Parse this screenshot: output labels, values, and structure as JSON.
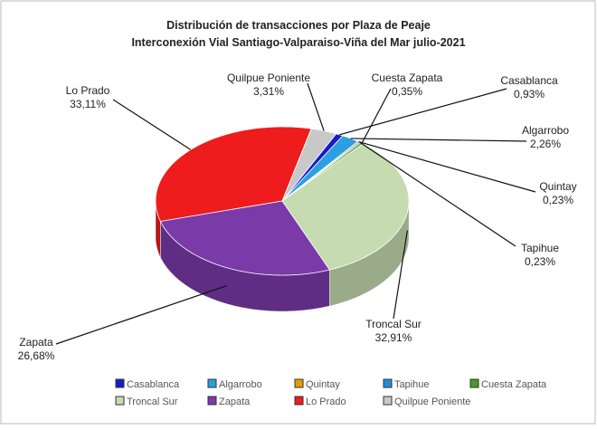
{
  "chart_data": {
    "type": "pie",
    "title": "Distribución de transacciones por Plaza de Peaje",
    "subtitle": "Interconexión Vial Santiago-Valparaiso-Viña  del Mar julio-2021",
    "categories": [
      "Casablanca",
      "Algarrobo",
      "Quintay",
      "Tapihue",
      "Cuesta Zapata",
      "Troncal Sur",
      "Zapata",
      "Lo Prado",
      "Quilpue Poniente"
    ],
    "values": [
      0.93,
      2.26,
      0.23,
      0.23,
      0.35,
      32.91,
      26.68,
      33.11,
      3.31
    ],
    "value_labels": [
      "0,93%",
      "2,26%",
      "0,23%",
      "0,23%",
      "0,35%",
      "32,91%",
      "26,68%",
      "33,11%",
      "3,31%"
    ],
    "colors": [
      "#1a1acc",
      "#2aa0e0",
      "#e0a000",
      "#1f8fd8",
      "#4a9a2a",
      "#c6dcb0",
      "#7a3aa8",
      "#ee1c1c",
      "#c8c8c8"
    ],
    "legend": "bottom"
  }
}
